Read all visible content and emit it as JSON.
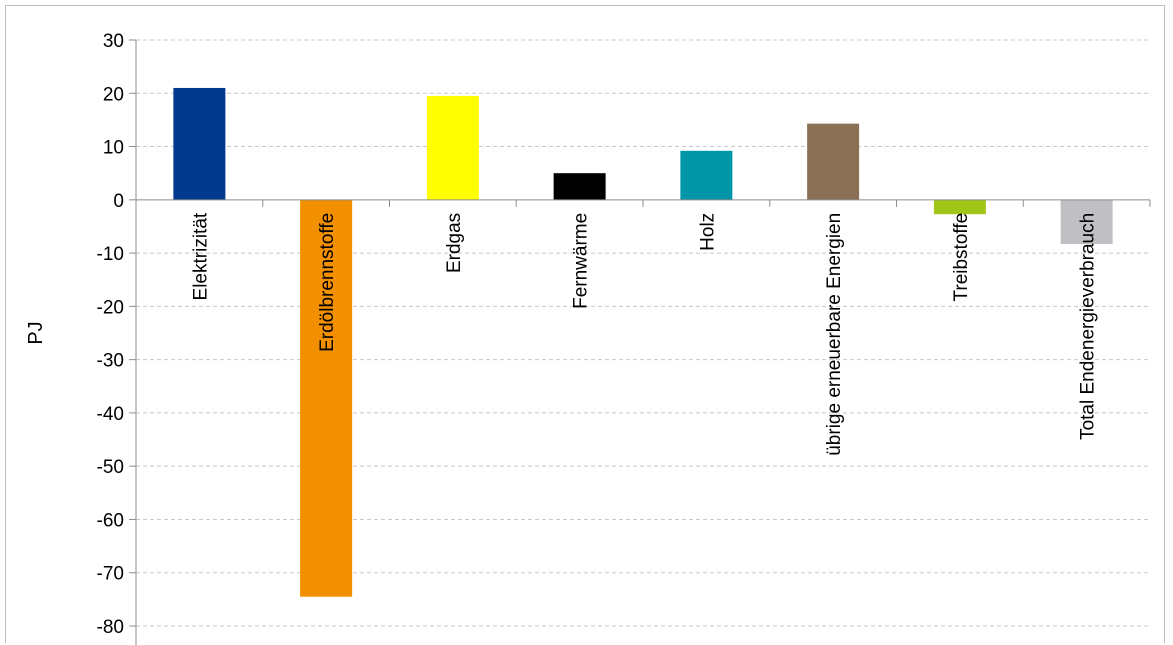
{
  "chart_data": {
    "type": "bar",
    "title": "",
    "xlabel": "",
    "ylabel": "PJ",
    "ylim": [
      -80,
      30
    ],
    "ytick_step": 10,
    "grid": true,
    "categories": [
      "Elektrizität",
      "Erdölbrennstoffe",
      "Erdgas",
      "Fernwärme",
      "Holz",
      "übrige erneuerbare Energien",
      "Treibstoffe",
      "Total Endenergieverbrauch"
    ],
    "values": [
      21,
      -74.5,
      19.5,
      5,
      9.2,
      14.3,
      -2.7,
      -8.3
    ],
    "colors": [
      "#003a8f",
      "#f39000",
      "#ffff00",
      "#000000",
      "#0096a8",
      "#8b7055",
      "#a2c617",
      "#c0c0c4"
    ]
  }
}
